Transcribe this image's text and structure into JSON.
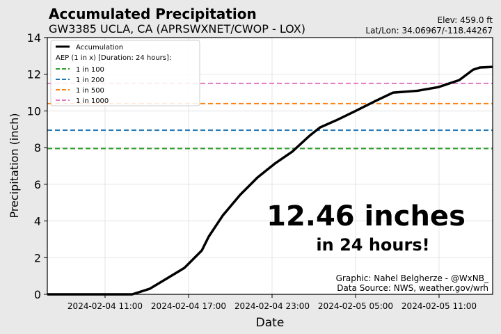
{
  "header": {
    "title": "Accumulated Precipitation",
    "subtitle": "GW3385 UCLA, CA (APRSWXNET/CWOP - LOX)",
    "elevation": "Elev: 459.0 ft",
    "latlon": "Lat/Lon: 34.06967/-118.44267"
  },
  "annotation": {
    "big": "12.46 inches",
    "small": "in 24 hours!",
    "credit": "Graphic: Nahel Belgherze - @WxNB_",
    "source": "Data Source: NWS, weather.gov/wrh"
  },
  "chart_data": {
    "type": "line",
    "title": "Accumulated Precipitation",
    "xlabel": "Date",
    "ylabel": "Precipitation (inch)",
    "x_unit": "hours since 2024-02-04 00:00",
    "xlim": [
      6.85,
      38.85
    ],
    "ylim": [
      0,
      14
    ],
    "yticks": [
      0,
      2,
      4,
      6,
      8,
      10,
      12,
      14
    ],
    "xticks": [
      {
        "value": 11,
        "label": "2024-02-04 11:00"
      },
      {
        "value": 17,
        "label": "2024-02-04 17:00"
      },
      {
        "value": 23,
        "label": "2024-02-04 23:00"
      },
      {
        "value": 29,
        "label": "2024-02-05 05:00"
      },
      {
        "value": 35,
        "label": "2024-02-05 11:00"
      }
    ],
    "grid": true,
    "legend_position": "top-left",
    "legend_heading": "AEP (1 in x) [Duration: 24 hours]:",
    "series": [
      {
        "name": "Accumulation",
        "color": "#000000",
        "x": [
          6.85,
          12.95,
          14.2,
          15.45,
          16.7,
          17.95,
          18.45,
          19.45,
          20.7,
          21.95,
          23.2,
          24.45,
          25.7,
          26.45,
          27.7,
          28.95,
          30.45,
          31.7,
          33.45,
          34.95,
          36.45,
          37.45,
          37.95,
          38.85
        ],
        "y": [
          0,
          0,
          0.3,
          0.87,
          1.44,
          2.39,
          3.15,
          4.29,
          5.42,
          6.37,
          7.13,
          7.78,
          8.65,
          9.1,
          9.52,
          9.98,
          10.55,
          11.0,
          11.1,
          11.3,
          11.68,
          12.25,
          12.37,
          12.4
        ]
      }
    ],
    "thresholds": [
      {
        "name": "1 in 100",
        "value": 7.95,
        "color": "#2ca02c"
      },
      {
        "name": "1 in 200",
        "value": 8.95,
        "color": "#1f77b4"
      },
      {
        "name": "1 in 500",
        "value": 10.4,
        "color": "#ff7f0e"
      },
      {
        "name": "1 in 1000",
        "value": 11.5,
        "color": "#e377c2"
      }
    ]
  }
}
